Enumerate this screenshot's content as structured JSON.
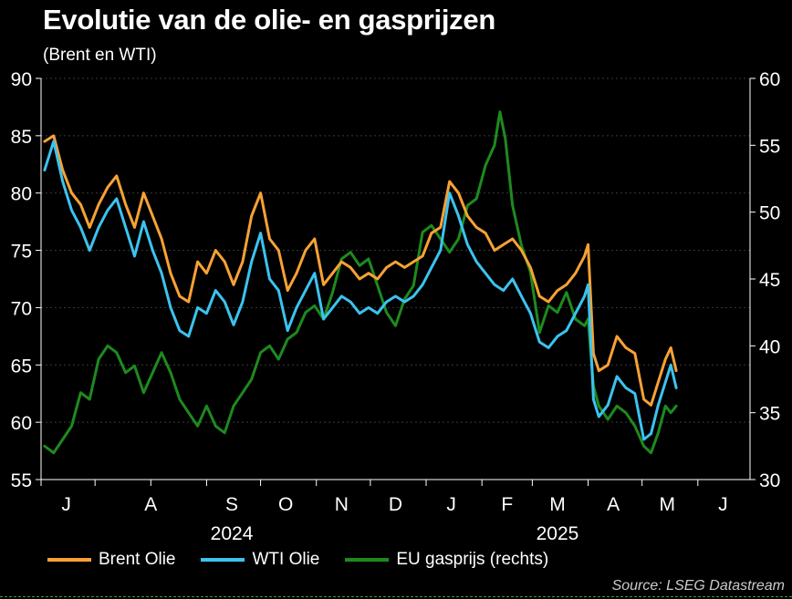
{
  "title": "Evolutie van de olie- en gasprijzen",
  "subtitle": "(Brent en WTI)",
  "source": "Source: LSEG Datastream",
  "chart_data": {
    "type": "line",
    "x_unit": "date",
    "x_range": [
      "2024-06-01",
      "2025-06-30"
    ],
    "y_left": {
      "range": [
        55,
        90
      ],
      "ticks": [
        55,
        60,
        65,
        70,
        75,
        80,
        85,
        90
      ]
    },
    "y_right": {
      "range": [
        30,
        60
      ],
      "ticks": [
        30,
        35,
        40,
        45,
        50,
        55,
        60
      ]
    },
    "month_ticks": [
      {
        "label": "J",
        "date": "2024-06-15"
      },
      {
        "label": "A",
        "date": "2024-08-01"
      },
      {
        "label": "S",
        "date": "2024-09-15"
      },
      {
        "label": "O",
        "date": "2024-10-15"
      },
      {
        "label": "N",
        "date": "2024-11-15"
      },
      {
        "label": "D",
        "date": "2024-12-15"
      },
      {
        "label": "J",
        "date": "2025-01-15"
      },
      {
        "label": "F",
        "date": "2025-02-15"
      },
      {
        "label": "M",
        "date": "2025-03-15"
      },
      {
        "label": "A",
        "date": "2025-04-15"
      },
      {
        "label": "M",
        "date": "2025-05-15"
      },
      {
        "label": "J",
        "date": "2025-06-15"
      }
    ],
    "year_labels": [
      {
        "label": "2024",
        "date": "2024-09-15"
      },
      {
        "label": "2025",
        "date": "2025-03-15"
      }
    ],
    "grid": true,
    "legend_position": "bottom",
    "series": [
      {
        "name": "Brent Olie",
        "axis": "left",
        "color": "#f7a234",
        "points": [
          [
            "2024-06-03",
            84.5
          ],
          [
            "2024-06-08",
            85.0
          ],
          [
            "2024-06-13",
            82.0
          ],
          [
            "2024-06-18",
            80.0
          ],
          [
            "2024-06-23",
            79.0
          ],
          [
            "2024-06-28",
            77.0
          ],
          [
            "2024-07-03",
            79.0
          ],
          [
            "2024-07-08",
            80.5
          ],
          [
            "2024-07-13",
            81.5
          ],
          [
            "2024-07-18",
            79.0
          ],
          [
            "2024-07-23",
            77.0
          ],
          [
            "2024-07-28",
            80.0
          ],
          [
            "2024-08-02",
            78.0
          ],
          [
            "2024-08-07",
            76.0
          ],
          [
            "2024-08-12",
            73.0
          ],
          [
            "2024-08-17",
            71.0
          ],
          [
            "2024-08-22",
            70.5
          ],
          [
            "2024-08-27",
            74.0
          ],
          [
            "2024-09-01",
            73.0
          ],
          [
            "2024-09-06",
            75.0
          ],
          [
            "2024-09-11",
            74.0
          ],
          [
            "2024-09-16",
            72.0
          ],
          [
            "2024-09-21",
            74.0
          ],
          [
            "2024-09-26",
            78.0
          ],
          [
            "2024-10-01",
            80.0
          ],
          [
            "2024-10-06",
            76.0
          ],
          [
            "2024-10-11",
            75.0
          ],
          [
            "2024-10-16",
            71.5
          ],
          [
            "2024-10-21",
            73.0
          ],
          [
            "2024-10-26",
            75.0
          ],
          [
            "2024-10-31",
            76.0
          ],
          [
            "2024-11-05",
            72.0
          ],
          [
            "2024-11-10",
            73.0
          ],
          [
            "2024-11-15",
            74.0
          ],
          [
            "2024-11-20",
            73.5
          ],
          [
            "2024-11-25",
            72.5
          ],
          [
            "2024-11-30",
            73.0
          ],
          [
            "2024-12-05",
            72.5
          ],
          [
            "2024-12-10",
            73.5
          ],
          [
            "2024-12-15",
            74.0
          ],
          [
            "2024-12-20",
            73.5
          ],
          [
            "2024-12-25",
            74.0
          ],
          [
            "2024-12-30",
            74.5
          ],
          [
            "2025-01-04",
            76.5
          ],
          [
            "2025-01-09",
            77.0
          ],
          [
            "2025-01-14",
            81.0
          ],
          [
            "2025-01-19",
            80.0
          ],
          [
            "2025-01-24",
            78.0
          ],
          [
            "2025-01-29",
            77.0
          ],
          [
            "2025-02-03",
            76.5
          ],
          [
            "2025-02-08",
            75.0
          ],
          [
            "2025-02-13",
            75.5
          ],
          [
            "2025-02-18",
            76.0
          ],
          [
            "2025-02-23",
            75.0
          ],
          [
            "2025-02-28",
            73.5
          ],
          [
            "2025-03-05",
            71.0
          ],
          [
            "2025-03-10",
            70.5
          ],
          [
            "2025-03-15",
            71.5
          ],
          [
            "2025-03-20",
            72.0
          ],
          [
            "2025-03-25",
            73.0
          ],
          [
            "2025-03-30",
            74.5
          ],
          [
            "2025-04-01",
            75.5
          ],
          [
            "2025-04-04",
            66.0
          ],
          [
            "2025-04-07",
            64.5
          ],
          [
            "2025-04-12",
            65.0
          ],
          [
            "2025-04-17",
            67.5
          ],
          [
            "2025-04-22",
            66.5
          ],
          [
            "2025-04-27",
            66.0
          ],
          [
            "2025-05-02",
            62.0
          ],
          [
            "2025-05-06",
            61.5
          ],
          [
            "2025-05-10",
            63.5
          ],
          [
            "2025-05-14",
            65.5
          ],
          [
            "2025-05-17",
            66.5
          ],
          [
            "2025-05-20",
            64.5
          ]
        ]
      },
      {
        "name": "WTI Olie",
        "axis": "left",
        "color": "#3cc3ef",
        "points": [
          [
            "2024-06-03",
            82.0
          ],
          [
            "2024-06-08",
            84.5
          ],
          [
            "2024-06-13",
            81.0
          ],
          [
            "2024-06-18",
            78.5
          ],
          [
            "2024-06-23",
            77.0
          ],
          [
            "2024-06-28",
            75.0
          ],
          [
            "2024-07-03",
            77.0
          ],
          [
            "2024-07-08",
            78.5
          ],
          [
            "2024-07-13",
            79.5
          ],
          [
            "2024-07-18",
            77.0
          ],
          [
            "2024-07-23",
            74.5
          ],
          [
            "2024-07-28",
            77.5
          ],
          [
            "2024-08-02",
            75.0
          ],
          [
            "2024-08-07",
            73.0
          ],
          [
            "2024-08-12",
            70.0
          ],
          [
            "2024-08-17",
            68.0
          ],
          [
            "2024-08-22",
            67.5
          ],
          [
            "2024-08-27",
            70.0
          ],
          [
            "2024-09-01",
            69.5
          ],
          [
            "2024-09-06",
            71.5
          ],
          [
            "2024-09-11",
            70.5
          ],
          [
            "2024-09-16",
            68.5
          ],
          [
            "2024-09-21",
            70.5
          ],
          [
            "2024-09-26",
            74.0
          ],
          [
            "2024-10-01",
            76.5
          ],
          [
            "2024-10-06",
            72.5
          ],
          [
            "2024-10-11",
            71.5
          ],
          [
            "2024-10-16",
            68.0
          ],
          [
            "2024-10-21",
            70.0
          ],
          [
            "2024-10-26",
            71.5
          ],
          [
            "2024-10-31",
            73.0
          ],
          [
            "2024-11-05",
            69.0
          ],
          [
            "2024-11-10",
            70.0
          ],
          [
            "2024-11-15",
            71.0
          ],
          [
            "2024-11-20",
            70.5
          ],
          [
            "2024-11-25",
            69.5
          ],
          [
            "2024-11-30",
            70.0
          ],
          [
            "2024-12-05",
            69.5
          ],
          [
            "2024-12-10",
            70.5
          ],
          [
            "2024-12-15",
            71.0
          ],
          [
            "2024-12-20",
            70.5
          ],
          [
            "2024-12-25",
            71.0
          ],
          [
            "2024-12-30",
            72.0
          ],
          [
            "2025-01-04",
            73.5
          ],
          [
            "2025-01-09",
            75.0
          ],
          [
            "2025-01-14",
            80.0
          ],
          [
            "2025-01-19",
            78.0
          ],
          [
            "2025-01-24",
            75.5
          ],
          [
            "2025-01-29",
            74.0
          ],
          [
            "2025-02-03",
            73.0
          ],
          [
            "2025-02-08",
            72.0
          ],
          [
            "2025-02-13",
            71.5
          ],
          [
            "2025-02-18",
            72.5
          ],
          [
            "2025-02-23",
            71.0
          ],
          [
            "2025-02-28",
            69.5
          ],
          [
            "2025-03-05",
            67.0
          ],
          [
            "2025-03-10",
            66.5
          ],
          [
            "2025-03-15",
            67.5
          ],
          [
            "2025-03-20",
            68.0
          ],
          [
            "2025-03-25",
            69.5
          ],
          [
            "2025-03-30",
            71.0
          ],
          [
            "2025-04-01",
            72.0
          ],
          [
            "2025-04-04",
            62.0
          ],
          [
            "2025-04-07",
            60.5
          ],
          [
            "2025-04-12",
            61.5
          ],
          [
            "2025-04-17",
            64.0
          ],
          [
            "2025-04-22",
            63.0
          ],
          [
            "2025-04-27",
            62.5
          ],
          [
            "2025-05-02",
            58.5
          ],
          [
            "2025-05-06",
            59.0
          ],
          [
            "2025-05-10",
            61.5
          ],
          [
            "2025-05-14",
            63.5
          ],
          [
            "2025-05-17",
            65.0
          ],
          [
            "2025-05-20",
            63.0
          ]
        ]
      },
      {
        "name": "EU gasprijs (rechts)",
        "axis": "right",
        "color": "#1e8a1e",
        "points": [
          [
            "2024-06-03",
            32.5
          ],
          [
            "2024-06-08",
            32.0
          ],
          [
            "2024-06-13",
            33.0
          ],
          [
            "2024-06-18",
            34.0
          ],
          [
            "2024-06-23",
            36.5
          ],
          [
            "2024-06-28",
            36.0
          ],
          [
            "2024-07-03",
            39.0
          ],
          [
            "2024-07-08",
            40.0
          ],
          [
            "2024-07-13",
            39.5
          ],
          [
            "2024-07-18",
            38.0
          ],
          [
            "2024-07-23",
            38.5
          ],
          [
            "2024-07-28",
            36.5
          ],
          [
            "2024-08-02",
            38.0
          ],
          [
            "2024-08-07",
            39.5
          ],
          [
            "2024-08-12",
            38.0
          ],
          [
            "2024-08-17",
            36.0
          ],
          [
            "2024-08-22",
            35.0
          ],
          [
            "2024-08-27",
            34.0
          ],
          [
            "2024-09-01",
            35.5
          ],
          [
            "2024-09-06",
            34.0
          ],
          [
            "2024-09-11",
            33.5
          ],
          [
            "2024-09-16",
            35.5
          ],
          [
            "2024-09-21",
            36.5
          ],
          [
            "2024-09-26",
            37.5
          ],
          [
            "2024-10-01",
            39.5
          ],
          [
            "2024-10-06",
            40.0
          ],
          [
            "2024-10-11",
            39.0
          ],
          [
            "2024-10-16",
            40.5
          ],
          [
            "2024-10-21",
            41.0
          ],
          [
            "2024-10-26",
            42.5
          ],
          [
            "2024-10-31",
            43.0
          ],
          [
            "2024-11-05",
            42.0
          ],
          [
            "2024-11-10",
            44.0
          ],
          [
            "2024-11-15",
            46.5
          ],
          [
            "2024-11-20",
            47.0
          ],
          [
            "2024-11-25",
            46.0
          ],
          [
            "2024-11-30",
            46.5
          ],
          [
            "2024-12-05",
            44.5
          ],
          [
            "2024-12-10",
            42.5
          ],
          [
            "2024-12-15",
            41.5
          ],
          [
            "2024-12-20",
            43.5
          ],
          [
            "2024-12-25",
            44.5
          ],
          [
            "2024-12-30",
            48.5
          ],
          [
            "2025-01-04",
            49.0
          ],
          [
            "2025-01-09",
            48.0
          ],
          [
            "2025-01-14",
            47.0
          ],
          [
            "2025-01-19",
            48.0
          ],
          [
            "2025-01-24",
            50.5
          ],
          [
            "2025-01-29",
            51.0
          ],
          [
            "2025-02-03",
            53.5
          ],
          [
            "2025-02-08",
            55.0
          ],
          [
            "2025-02-11",
            57.5
          ],
          [
            "2025-02-14",
            55.5
          ],
          [
            "2025-02-18",
            50.5
          ],
          [
            "2025-02-23",
            47.5
          ],
          [
            "2025-02-28",
            45.5
          ],
          [
            "2025-03-05",
            41.0
          ],
          [
            "2025-03-10",
            43.0
          ],
          [
            "2025-03-15",
            42.5
          ],
          [
            "2025-03-20",
            44.0
          ],
          [
            "2025-03-25",
            42.0
          ],
          [
            "2025-03-30",
            41.5
          ],
          [
            "2025-04-01",
            42.0
          ],
          [
            "2025-04-04",
            37.0
          ],
          [
            "2025-04-07",
            35.5
          ],
          [
            "2025-04-12",
            34.5
          ],
          [
            "2025-04-17",
            35.5
          ],
          [
            "2025-04-22",
            35.0
          ],
          [
            "2025-04-27",
            34.0
          ],
          [
            "2025-05-02",
            32.5
          ],
          [
            "2025-05-06",
            32.0
          ],
          [
            "2025-05-10",
            33.5
          ],
          [
            "2025-05-14",
            35.5
          ],
          [
            "2025-05-17",
            35.0
          ],
          [
            "2025-05-20",
            35.5
          ]
        ]
      }
    ]
  }
}
